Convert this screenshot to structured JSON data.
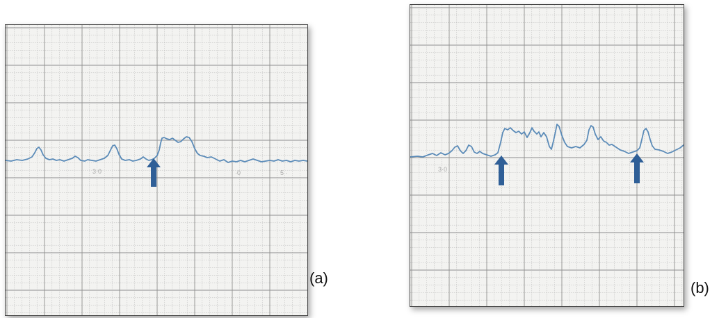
{
  "figure": {
    "panels": [
      {
        "label": "(a)",
        "trace_color": "#5b8bb8",
        "arrow_color": "#2f5f97",
        "arrow_count": 1
      },
      {
        "label": "(b)",
        "trace_color": "#5b8bb8",
        "arrow_color": "#2f5f97",
        "arrow_count": 2
      }
    ],
    "paper_color": "#f3f3f1",
    "grid_minor_color": "#b8b8b8",
    "grid_major_color": "#8e8e8e",
    "arrow_icon": "up-arrow-icon"
  }
}
